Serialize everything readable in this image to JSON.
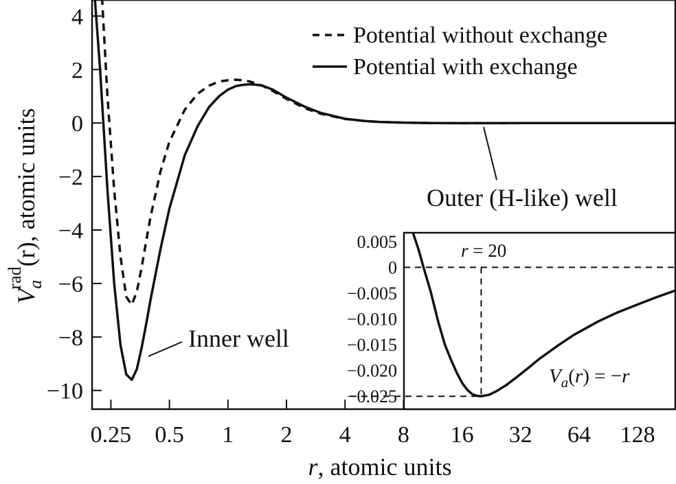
{
  "chart_data": [
    {
      "type": "line",
      "x_scale": "log2",
      "xlabel_var": "r",
      "xlabel_rest": ", atomic units",
      "ylabel_var": "V",
      "ylabel_sub": "a",
      "ylabel_sup": "rad",
      "ylabel_rest": "(r), atomic units",
      "xlim": [
        0.2,
        200
      ],
      "ylim": [
        -10.7,
        4.6
      ],
      "x_ticks": [
        0.25,
        0.5,
        1,
        2,
        4,
        8,
        16,
        32,
        64,
        128
      ],
      "x_tick_labels": [
        "0.25",
        "0.5",
        "1",
        "2",
        "4",
        "8",
        "16",
        "32",
        "64",
        "128"
      ],
      "y_ticks": [
        4,
        2,
        0,
        -2,
        -4,
        -6,
        -8,
        -10
      ],
      "y_tick_labels": [
        "4",
        "2",
        "0",
        "−2",
        "−4",
        "−6",
        "−8",
        "−10"
      ],
      "legend_position": "top-right",
      "series": [
        {
          "name": "Potential without exchange",
          "style": "dashed",
          "x": [
            0.225,
            0.24,
            0.26,
            0.28,
            0.3,
            0.32,
            0.34,
            0.36,
            0.38,
            0.4,
            0.45,
            0.5,
            0.6,
            0.7,
            0.8,
            0.9,
            1.0,
            1.1,
            1.2,
            1.3,
            1.5,
            1.7,
            2.0,
            2.5,
            3.0,
            4.0,
            5.0,
            6.0,
            8.0,
            11.0,
            16.0,
            32.0,
            200.0
          ],
          "y": [
            4.7,
            1.0,
            -2.5,
            -5.0,
            -6.5,
            -6.8,
            -6.3,
            -5.4,
            -4.4,
            -3.5,
            -1.8,
            -0.7,
            0.5,
            1.1,
            1.4,
            1.55,
            1.6,
            1.62,
            1.6,
            1.55,
            1.4,
            1.2,
            0.9,
            0.55,
            0.35,
            0.15,
            0.08,
            0.04,
            0.015,
            0.0,
            -0.005,
            -0.003,
            0.0
          ]
        },
        {
          "name": "Potential with exchange",
          "style": "solid",
          "x": [
            0.207,
            0.22,
            0.24,
            0.26,
            0.28,
            0.3,
            0.32,
            0.34,
            0.36,
            0.38,
            0.4,
            0.45,
            0.5,
            0.6,
            0.7,
            0.8,
            0.9,
            1.0,
            1.1,
            1.2,
            1.3,
            1.4,
            1.5,
            1.7,
            2.0,
            2.5,
            3.0,
            4.0,
            5.0,
            6.0,
            8.0,
            11.0,
            16.0,
            32.0,
            200.0
          ],
          "y": [
            4.6,
            2.0,
            -2.5,
            -6.0,
            -8.3,
            -9.4,
            -9.6,
            -9.2,
            -8.4,
            -7.5,
            -6.6,
            -4.7,
            -3.2,
            -1.2,
            -0.1,
            0.6,
            1.0,
            1.25,
            1.38,
            1.43,
            1.45,
            1.43,
            1.4,
            1.25,
            0.95,
            0.6,
            0.38,
            0.16,
            0.08,
            0.04,
            0.015,
            0.0,
            -0.005,
            -0.003,
            0.0
          ]
        }
      ],
      "annotations": {
        "inner_well": "Inner well",
        "outer_well": "Outer (H-like) well"
      }
    },
    {
      "type": "line",
      "role": "inset",
      "x_scale": "log2",
      "xlim": [
        8,
        200
      ],
      "ylim": [
        -0.0275,
        0.0067
      ],
      "y_ticks": [
        0.005,
        0,
        -0.005,
        -0.01,
        -0.015,
        -0.02,
        -0.025
      ],
      "y_tick_labels": [
        "0.005",
        "0",
        "−0.005",
        "−0.010",
        "−0.015",
        "−0.020",
        "−0.025"
      ],
      "series": [
        {
          "name": "",
          "style": "solid",
          "x": [
            8.9,
            9.5,
            10.0,
            11.0,
            12.0,
            13.0,
            14.0,
            15.0,
            16.0,
            17.0,
            18.0,
            19.0,
            20.0,
            22.0,
            24.0,
            27.0,
            30.0,
            35.0,
            40.0,
            50.0,
            60.0,
            80.0,
            100.0,
            130.0,
            160.0,
            200.0
          ],
          "y": [
            0.0067,
            0.0035,
            0.0005,
            -0.0048,
            -0.0105,
            -0.015,
            -0.018,
            -0.0205,
            -0.0225,
            -0.0238,
            -0.0246,
            -0.0249,
            -0.025,
            -0.0247,
            -0.024,
            -0.0228,
            -0.0215,
            -0.0195,
            -0.0177,
            -0.0151,
            -0.0131,
            -0.0105,
            -0.0088,
            -0.0071,
            -0.0058,
            -0.0045
          ]
        }
      ],
      "reference_lines": {
        "y0": 0,
        "min_x": 20,
        "min_y": -0.025
      },
      "annotations": {
        "r_label_var": "r",
        "r_label_rest": " = 20",
        "formula_var": "V",
        "formula_sub": "a",
        "formula_rest_1": "(",
        "formula_r": "r",
        "formula_rest_2": ") = −",
        "formula_r2": "r"
      }
    }
  ]
}
